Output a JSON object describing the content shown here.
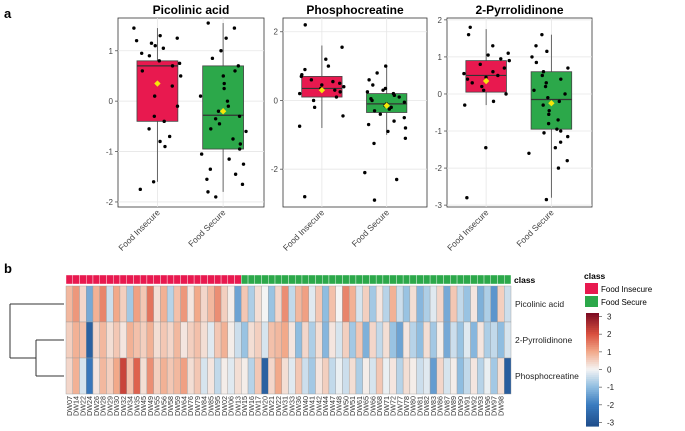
{
  "panel_a_label": "a",
  "panel_b_label": "b",
  "colors": {
    "food_insecure": "#e8194f",
    "food_secure": "#2ca84a",
    "mean_marker": "#f5e60a",
    "heat_low": "#1f4e8c",
    "heat_mid": "#f4f4f4",
    "heat_high": "#7a0a22"
  },
  "chart_data": [
    {
      "type": "box",
      "title": "Picolinic acid",
      "categories": [
        "Food Insecure",
        "Food Secure"
      ],
      "ylim": [
        -2.1,
        1.65
      ],
      "yticks": [
        -2,
        -1,
        0,
        1
      ],
      "boxes": [
        {
          "group": "Food Insecure",
          "whisker_low": -1.6,
          "q1": -0.4,
          "median": 0.7,
          "q3": 0.8,
          "whisker_high": 1.45,
          "mean": 0.35,
          "points": [
            1.45,
            1.25,
            1.2,
            1.3,
            1.15,
            1.1,
            1.05,
            0.95,
            0.9,
            0.8,
            0.75,
            0.7,
            0.6,
            0.5,
            0.3,
            0.1,
            -0.1,
            -0.3,
            -0.4,
            -0.55,
            -0.7,
            -0.8,
            -0.9,
            -1.6,
            -1.75
          ]
        },
        {
          "group": "Food Secure",
          "whisker_low": -1.8,
          "q1": -0.95,
          "median": -0.28,
          "q3": 0.7,
          "whisker_high": 1.55,
          "mean": -0.2,
          "points": [
            1.55,
            1.45,
            1.25,
            1.0,
            0.85,
            0.7,
            0.6,
            0.5,
            0.35,
            0.25,
            0.1,
            0.0,
            -0.1,
            -0.2,
            -0.3,
            -0.35,
            -0.45,
            -0.55,
            -0.6,
            -0.75,
            -0.85,
            -0.95,
            -1.05,
            -1.15,
            -1.25,
            -1.35,
            -1.45,
            -1.55,
            -1.65,
            -1.8,
            -1.9
          ]
        }
      ]
    },
    {
      "type": "box",
      "title": "Phosphocreatine",
      "categories": [
        "Food Insecure",
        "Food Secure"
      ],
      "ylim": [
        -3.1,
        2.4
      ],
      "yticks": [
        -2,
        0,
        2
      ],
      "boxes": [
        {
          "group": "Food Insecure",
          "whisker_low": -0.8,
          "q1": 0.1,
          "median": 0.35,
          "q3": 0.7,
          "whisker_high": 1.6,
          "mean": 0.3,
          "points": [
            2.2,
            1.55,
            1.2,
            1.0,
            0.9,
            0.75,
            0.7,
            0.6,
            0.55,
            0.5,
            0.45,
            0.4,
            0.35,
            0.3,
            0.25,
            0.2,
            0.1,
            0.0,
            -0.2,
            -0.45,
            -0.75,
            -2.8
          ]
        },
        {
          "group": "Food Secure",
          "whisker_low": -1.0,
          "q1": -0.35,
          "median": -0.1,
          "q3": 0.2,
          "whisker_high": 1.0,
          "mean": -0.15,
          "points": [
            1.0,
            0.8,
            0.6,
            0.45,
            0.35,
            0.3,
            0.25,
            0.2,
            0.15,
            0.1,
            0.05,
            0.0,
            -0.05,
            -0.1,
            -0.15,
            -0.2,
            -0.25,
            -0.3,
            -0.4,
            -0.5,
            -0.6,
            -0.7,
            -0.8,
            -0.9,
            -1.1,
            -1.25,
            -2.1,
            -2.3,
            -2.9
          ]
        }
      ]
    },
    {
      "type": "box",
      "title": "2-Pyrrolidinone",
      "categories": [
        "Food Insecure",
        "Food Secure"
      ],
      "ylim": [
        -3.05,
        2.05
      ],
      "yticks": [
        -3,
        -2,
        -1,
        0,
        1,
        2
      ],
      "boxes": [
        {
          "group": "Food Insecure",
          "whisker_low": -0.3,
          "q1": 0.05,
          "median": 0.5,
          "q3": 0.9,
          "whisker_high": 1.75,
          "mean": 0.35,
          "points": [
            1.8,
            1.6,
            1.3,
            1.1,
            1.05,
            0.95,
            0.9,
            0.8,
            0.7,
            0.6,
            0.55,
            0.5,
            0.45,
            0.4,
            0.3,
            0.2,
            0.1,
            0.0,
            -0.2,
            -0.3,
            -1.45,
            -2.8
          ]
        },
        {
          "group": "Food Secure",
          "whisker_low": -2.8,
          "q1": -0.95,
          "median": -0.15,
          "q3": 0.6,
          "whisker_high": 1.6,
          "mean": -0.25,
          "points": [
            1.6,
            1.3,
            1.15,
            1.0,
            0.85,
            0.7,
            0.6,
            0.5,
            0.4,
            0.3,
            0.2,
            0.1,
            0.0,
            -0.1,
            -0.2,
            -0.3,
            -0.45,
            -0.55,
            -0.7,
            -0.8,
            -0.95,
            -1.0,
            -1.05,
            -1.15,
            -1.3,
            -1.45,
            -1.6,
            -1.8,
            -2.0,
            -2.85
          ]
        }
      ]
    },
    {
      "type": "heatmap",
      "row_labels": [
        "Picolinic acid",
        "2-Pyrrolidinone",
        "Phosphocreatine"
      ],
      "class_title": "class",
      "class_legend_title": "class",
      "class_legend": [
        "Food Insecure",
        "Food Secure"
      ],
      "class_counts": [
        26,
        40
      ],
      "colorbar_range": [
        -3.2,
        3.2
      ],
      "colorbar_ticks": [
        3,
        2,
        1,
        0,
        -1,
        -2,
        -3
      ],
      "columns": [
        "DW07",
        "DW14",
        "DW22",
        "DW24",
        "DW26",
        "DW28",
        "DW29",
        "DW30",
        "DW32",
        "DW34",
        "DW35",
        "DW45",
        "DW49",
        "DW55",
        "DW56",
        "DW58",
        "DW59",
        "DW64",
        "DW76",
        "DW79",
        "DW84",
        "DW85",
        "DW95",
        "DW02",
        "DW06",
        "DW13",
        "DW15",
        "DW16",
        "DW17",
        "DW20",
        "DW21",
        "DW22",
        "DW31",
        "DW33",
        "DW36",
        "DW40",
        "DW41",
        "DW42",
        "DW44",
        "DW47",
        "DW48",
        "DW50",
        "DW51",
        "DW61",
        "DW65",
        "DW66",
        "DW68",
        "DW71",
        "DW72",
        "DW77",
        "DW78",
        "DW80",
        "DW81",
        "DW82",
        "DW83",
        "DW86",
        "DW87",
        "DW89",
        "DW90",
        "DW91",
        "DW92",
        "DW93",
        "DW96",
        "DW97",
        "DW98",
        "DW99"
      ],
      "column_labels_visible": [
        "DW07",
        "DW14",
        "DW22",
        "DW24",
        "DW26",
        "DW28",
        "DW29",
        "DW30",
        "DW32",
        "DW34",
        "DW35",
        "DW45",
        "DW49",
        "DW55",
        "DW56",
        "DW58",
        "DW59",
        "DW64",
        "DW76",
        "DW79",
        "DW84",
        "DW85",
        "DW95",
        "DW02",
        "DW06",
        "DW13",
        "DW15",
        "DW16",
        "DW17",
        "DW20",
        "DW21",
        "DW22",
        "DW31",
        "DW33",
        "DW36",
        "DW40",
        "DW41",
        "DW42",
        "DW44",
        "DW47",
        "DW48",
        "DW50",
        "DW51",
        "DW61",
        "DW65",
        "DW66",
        "DW68",
        "DW71",
        "DW72",
        "DW77",
        "DW78",
        "DW80",
        "DW81",
        "DW82",
        "DW83",
        "DW86",
        "DW87",
        "DW89",
        "DW90",
        "DW91",
        "DW92",
        "DW93",
        "DW96",
        "DW97",
        "DW98"
      ],
      "values": [
        [
          0.8,
          1.2,
          0.4,
          -1.3,
          0.9,
          1.4,
          -0.4,
          1.0,
          0.5,
          -0.8,
          1.1,
          0.6,
          1.6,
          0.3,
          0.9,
          -0.6,
          0.7,
          1.2,
          0.2,
          1.0,
          0.4,
          0.8,
          1.3,
          0.5,
          0.1,
          -1.4,
          0.6,
          -0.7,
          0.3,
          0.0,
          -0.9,
          0.4,
          1.3,
          -0.5,
          0.8,
          1.1,
          -0.2,
          0.6,
          -1.0,
          0.7,
          0.0,
          1.4,
          0.9,
          -0.3,
          0.5,
          -0.8,
          0.2,
          -0.6,
          0.9,
          -0.4,
          -0.9,
          0.3,
          -1.1,
          -0.7,
          -0.2,
          0.4,
          -1.3,
          0.6,
          -0.5,
          -0.9,
          0.2,
          -1.2,
          -0.7,
          -1.6,
          0.5,
          -0.4
        ],
        [
          0.5,
          0.9,
          0.7,
          -2.7,
          0.4,
          0.8,
          0.3,
          0.6,
          0.2,
          0.9,
          0.7,
          0.5,
          0.9,
          0.3,
          0.6,
          0.4,
          0.8,
          0.2,
          0.5,
          0.7,
          0.3,
          -0.2,
          0.6,
          0.9,
          0.1,
          -0.4,
          -0.9,
          0.3,
          0.5,
          -0.3,
          0.7,
          0.8,
          1.0,
          0.2,
          -1.0,
          0.4,
          -0.7,
          0.3,
          -1.1,
          0.2,
          -0.3,
          0.5,
          -0.8,
          0.6,
          -1.2,
          0.4,
          -0.5,
          0.3,
          -0.9,
          -1.4,
          0.2,
          -0.6,
          -1.0,
          0.3,
          -0.8,
          0.1,
          -1.3,
          -0.4,
          -0.9,
          -0.2,
          -1.1,
          0.2,
          -0.7,
          -0.5,
          -1.0,
          -0.3
        ],
        [
          0.4,
          0.9,
          -0.3,
          -2.1,
          0.2,
          0.8,
          0.5,
          1.0,
          2.2,
          0.7,
          1.8,
          0.3,
          1.3,
          0.5,
          0.9,
          0.6,
          0.8,
          1.1,
          0.3,
          0.6,
          -0.3,
          0.2,
          -0.5,
          0.1,
          -0.2,
          0.3,
          0.1,
          -0.6,
          0.6,
          -2.7,
          0.4,
          1.0,
          0.3,
          -0.2,
          0.6,
          -0.4,
          -0.8,
          0.2,
          0.5,
          -0.5,
          -0.1,
          -0.4,
          0.3,
          -0.7,
          0.1,
          -0.3,
          0.6,
          -0.1,
          0.2,
          -0.6,
          0.3,
          0.1,
          -0.4,
          -0.2,
          -1.5,
          0.4,
          -0.3,
          0.1,
          -1.0,
          -0.5,
          0.2,
          -0.6,
          -0.1,
          -0.8,
          0.3,
          -2.8
        ]
      ]
    }
  ]
}
